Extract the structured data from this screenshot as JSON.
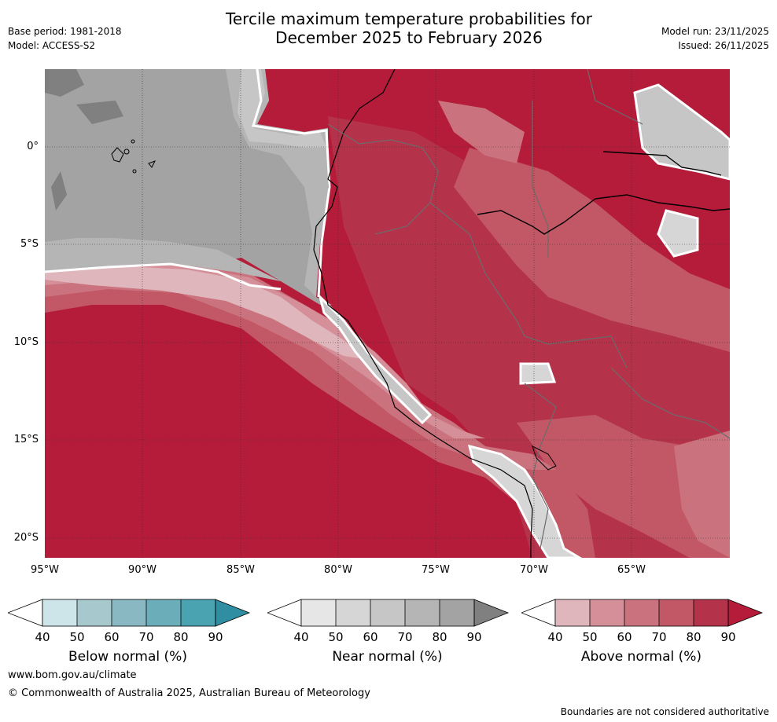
{
  "title": {
    "line1": "Tercile maximum temperature probabilities for",
    "line2": "December 2025 to February 2026"
  },
  "meta": {
    "base_period": "Base period: 1981-2018",
    "model": "Model: ACCESS-S2",
    "model_run": "Model run: 23/11/2025",
    "issued": "Issued: 26/11/2025"
  },
  "axes": {
    "x_ticks": [
      "95°W",
      "90°W",
      "85°W",
      "80°W",
      "75°W",
      "70°W",
      "65°W"
    ],
    "y_ticks": [
      "0°",
      "5°S",
      "10°S",
      "15°S",
      "20°S"
    ]
  },
  "colorbars": [
    {
      "label": "Below normal (%)",
      "ticks": [
        "40",
        "50",
        "60",
        "70",
        "80",
        "90"
      ],
      "colors": [
        "#ffffff",
        "#cde4e8",
        "#a7c9ce",
        "#89b8c2",
        "#6badb8",
        "#4aa3b1",
        "#2f8ea1"
      ]
    },
    {
      "label": "Near normal (%)",
      "ticks": [
        "40",
        "50",
        "60",
        "70",
        "80",
        "90"
      ],
      "colors": [
        "#ffffff",
        "#e6e6e6",
        "#d6d6d6",
        "#c6c6c6",
        "#b5b5b5",
        "#a3a3a3",
        "#808080"
      ]
    },
    {
      "label": "Above normal (%)",
      "ticks": [
        "40",
        "50",
        "60",
        "70",
        "80",
        "90"
      ],
      "colors": [
        "#ffffff",
        "#dfb6bc",
        "#d58f99",
        "#ca727e",
        "#c25865",
        "#b5334a",
        "#b51c3a"
      ]
    }
  ],
  "footer": {
    "website": "www.bom.gov.au/climate",
    "copyright": "© Commonwealth of Australia 2025, Australian Bureau of Meteorology",
    "disclaimer": "Boundaries are not considered authoritative"
  }
}
